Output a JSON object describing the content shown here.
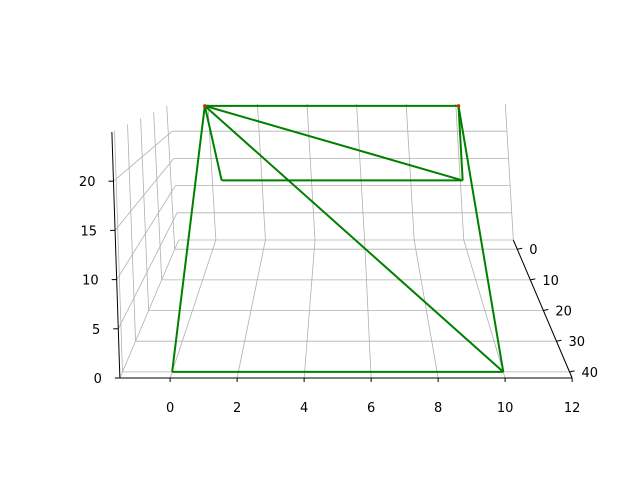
{
  "chart_data": {
    "type": "line",
    "projection": "3d",
    "title": "",
    "xlabel": "",
    "ylabel": "",
    "zlabel": "",
    "grid": true,
    "line_color": "#008000",
    "vertex_color": "#cc3300",
    "grid_color": "#b0b0b0",
    "x_ticks": [
      "0",
      "2",
      "4",
      "6",
      "8",
      "10",
      "12"
    ],
    "y_ticks": [
      "0",
      "10",
      "20",
      "30",
      "40"
    ],
    "z_ticks": [
      "0",
      "5",
      "10",
      "15",
      "20"
    ],
    "xlim": [
      -1.5,
      12
    ],
    "ylim": [
      -3,
      42
    ],
    "zlim": [
      0,
      25
    ],
    "vertices": [
      {
        "x": 0,
        "y": 0,
        "z": 25
      },
      {
        "x": 10,
        "y": 0,
        "z": 25
      },
      {
        "x": 10,
        "y": 0,
        "z": 12
      },
      {
        "x": 0.5,
        "y": 0,
        "z": 12
      },
      {
        "x": 0,
        "y": 40,
        "z": 0
      },
      {
        "x": 10,
        "y": 40,
        "z": 0
      }
    ],
    "edges": [
      [
        0,
        1
      ],
      [
        0,
        3
      ],
      [
        3,
        2
      ],
      [
        2,
        1
      ],
      [
        0,
        2
      ],
      [
        0,
        4
      ],
      [
        4,
        5
      ],
      [
        5,
        1
      ],
      [
        0,
        5
      ]
    ],
    "markers": [
      0,
      1
    ]
  }
}
